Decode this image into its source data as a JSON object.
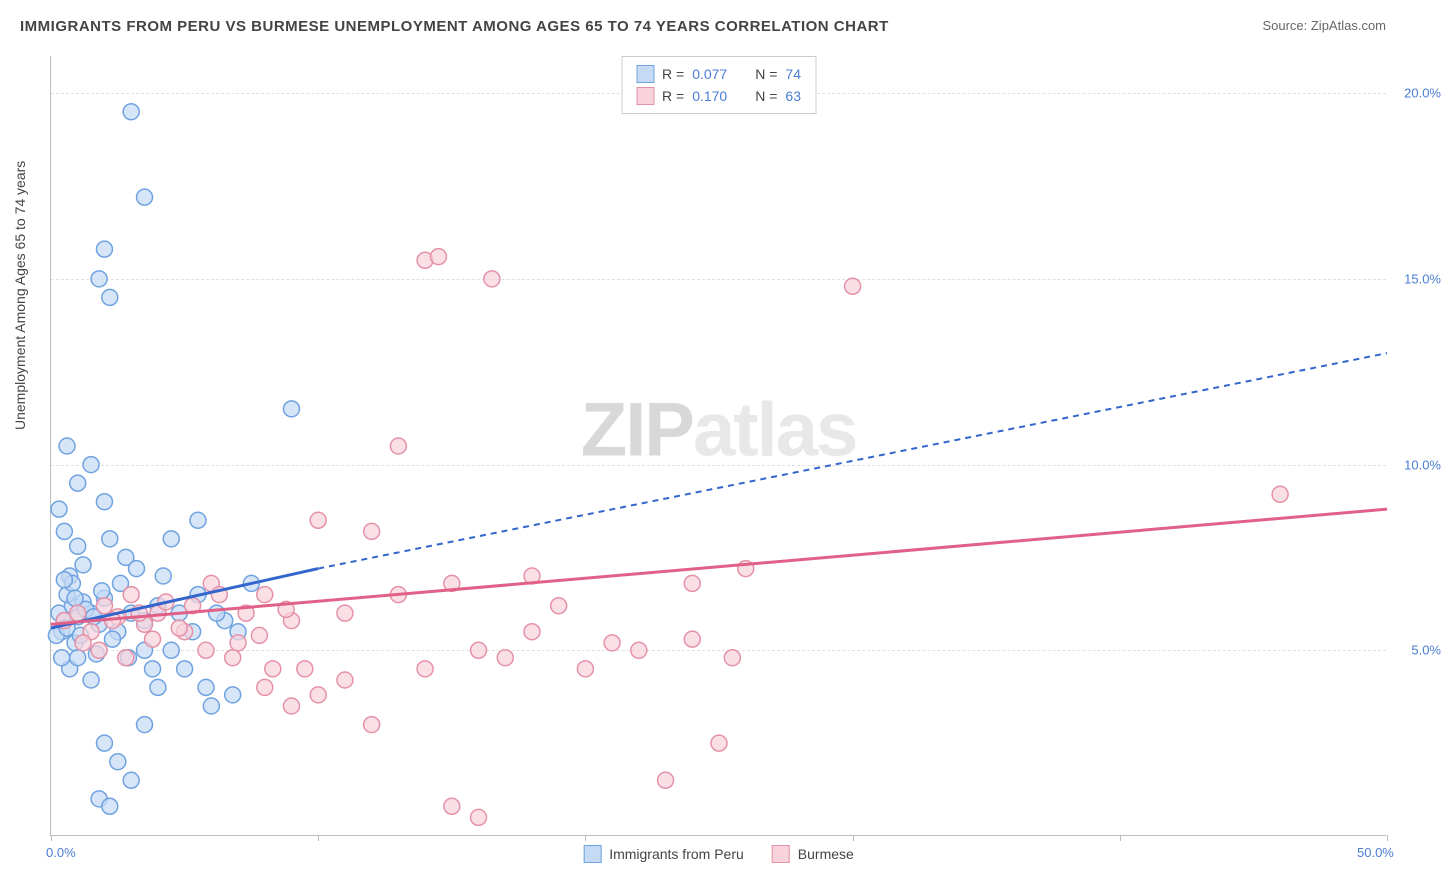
{
  "title": "IMMIGRANTS FROM PERU VS BURMESE UNEMPLOYMENT AMONG AGES 65 TO 74 YEARS CORRELATION CHART",
  "source": "Source: ZipAtlas.com",
  "y_axis_label": "Unemployment Among Ages 65 to 74 years",
  "watermark_zip": "ZIP",
  "watermark_atlas": "atlas",
  "chart": {
    "type": "scatter",
    "xlim": [
      0,
      50
    ],
    "ylim": [
      0,
      21
    ],
    "x_ticks": [
      0,
      10,
      20,
      30,
      40,
      50
    ],
    "x_tick_labels": [
      "0.0%",
      "",
      "",
      "",
      "",
      "50.0%"
    ],
    "y_ticks": [
      5,
      10,
      15,
      20
    ],
    "y_tick_labels": [
      "5.0%",
      "10.0%",
      "15.0%",
      "20.0%"
    ],
    "grid_color": "#e0e0e0",
    "background_color": "#ffffff",
    "series": [
      {
        "name": "Immigrants from Peru",
        "marker_color": "#c5daf5",
        "marker_border": "#6fa3e0",
        "line_color": "#3366cc",
        "r_value": "0.077",
        "n_value": "74",
        "trend": {
          "x1": 0,
          "y1": 5.6,
          "x2": 10,
          "y2": 7.2,
          "x2_dash": 50,
          "y2_dash": 13.0
        },
        "points": [
          [
            0.3,
            6.0
          ],
          [
            0.5,
            5.8
          ],
          [
            0.8,
            6.2
          ],
          [
            0.4,
            5.5
          ],
          [
            0.6,
            6.5
          ],
          [
            1.0,
            5.9
          ],
          [
            1.2,
            6.3
          ],
          [
            0.7,
            7.0
          ],
          [
            0.9,
            5.2
          ],
          [
            1.5,
            6.0
          ],
          [
            1.8,
            5.7
          ],
          [
            2.0,
            6.4
          ],
          [
            0.5,
            8.2
          ],
          [
            0.3,
            8.8
          ],
          [
            0.7,
            4.5
          ],
          [
            1.0,
            4.8
          ],
          [
            1.5,
            4.2
          ],
          [
            2.5,
            5.5
          ],
          [
            3.0,
            6.0
          ],
          [
            2.2,
            8.0
          ],
          [
            2.8,
            7.5
          ],
          [
            3.5,
            5.8
          ],
          [
            4.0,
            6.2
          ],
          [
            0.6,
            10.5
          ],
          [
            1.0,
            9.5
          ],
          [
            1.5,
            10.0
          ],
          [
            2.0,
            9.0
          ],
          [
            2.0,
            2.5
          ],
          [
            2.5,
            2.0
          ],
          [
            3.0,
            1.5
          ],
          [
            3.5,
            3.0
          ],
          [
            1.8,
            1.0
          ],
          [
            2.2,
            0.8
          ],
          [
            4.5,
            5.0
          ],
          [
            5.0,
            4.5
          ],
          [
            5.5,
            6.5
          ],
          [
            6.0,
            3.5
          ],
          [
            6.5,
            5.8
          ],
          [
            5.5,
            8.5
          ],
          [
            4.5,
            8.0
          ],
          [
            1.8,
            15.0
          ],
          [
            2.0,
            15.8
          ],
          [
            2.2,
            14.5
          ],
          [
            3.0,
            19.5
          ],
          [
            3.5,
            17.2
          ],
          [
            1.0,
            7.8
          ],
          [
            0.4,
            4.8
          ],
          [
            0.2,
            5.4
          ],
          [
            0.6,
            5.6
          ],
          [
            0.8,
            6.8
          ],
          [
            1.1,
            5.4
          ],
          [
            1.3,
            6.1
          ],
          [
            1.6,
            5.9
          ],
          [
            1.9,
            6.6
          ],
          [
            2.3,
            5.3
          ],
          [
            2.6,
            6.8
          ],
          [
            2.9,
            4.8
          ],
          [
            3.2,
            7.2
          ],
          [
            3.8,
            4.5
          ],
          [
            4.2,
            7.0
          ],
          [
            4.8,
            6.0
          ],
          [
            5.3,
            5.5
          ],
          [
            5.8,
            4.0
          ],
          [
            6.2,
            6.0
          ],
          [
            6.8,
            3.8
          ],
          [
            7.0,
            5.5
          ],
          [
            0.5,
            6.9
          ],
          [
            0.9,
            6.4
          ],
          [
            1.2,
            7.3
          ],
          [
            1.7,
            4.9
          ],
          [
            9.0,
            11.5
          ],
          [
            7.5,
            6.8
          ],
          [
            3.5,
            5.0
          ],
          [
            4.0,
            4.0
          ]
        ]
      },
      {
        "name": "Burmese",
        "marker_color": "#f8d3dc",
        "marker_border": "#e591a8",
        "line_color": "#e06088",
        "r_value": "0.170",
        "n_value": "63",
        "trend": {
          "x1": 0,
          "y1": 5.7,
          "x2": 50,
          "y2": 8.8
        },
        "points": [
          [
            0.5,
            5.8
          ],
          [
            1.0,
            6.0
          ],
          [
            1.5,
            5.5
          ],
          [
            2.0,
            6.2
          ],
          [
            2.5,
            5.9
          ],
          [
            3.0,
            6.5
          ],
          [
            3.5,
            5.7
          ],
          [
            4.0,
            6.0
          ],
          [
            5.0,
            5.5
          ],
          [
            6.0,
            6.8
          ],
          [
            7.0,
            5.2
          ],
          [
            8.0,
            6.5
          ],
          [
            9.0,
            5.8
          ],
          [
            10.0,
            8.5
          ],
          [
            11.0,
            6.0
          ],
          [
            12.0,
            8.2
          ],
          [
            13.0,
            6.5
          ],
          [
            14.0,
            4.5
          ],
          [
            15.0,
            6.8
          ],
          [
            16.0,
            5.0
          ],
          [
            17.0,
            4.8
          ],
          [
            18.0,
            5.5
          ],
          [
            9.0,
            3.5
          ],
          [
            10.0,
            3.8
          ],
          [
            11.0,
            4.2
          ],
          [
            12.0,
            3.0
          ],
          [
            15.0,
            0.8
          ],
          [
            16.0,
            0.5
          ],
          [
            23.0,
            1.5
          ],
          [
            25.0,
            2.5
          ],
          [
            22.0,
            5.0
          ],
          [
            20.0,
            4.5
          ],
          [
            21.0,
            5.2
          ],
          [
            19.0,
            6.2
          ],
          [
            18.0,
            7.0
          ],
          [
            24.0,
            6.8
          ],
          [
            26.0,
            7.2
          ],
          [
            13.0,
            10.5
          ],
          [
            14.0,
            15.5
          ],
          [
            14.5,
            15.6
          ],
          [
            16.5,
            15.0
          ],
          [
            30.0,
            14.8
          ],
          [
            46.0,
            9.2
          ],
          [
            8.0,
            4.0
          ],
          [
            9.5,
            4.5
          ],
          [
            1.2,
            5.2
          ],
          [
            1.8,
            5.0
          ],
          [
            2.3,
            5.8
          ],
          [
            2.8,
            4.8
          ],
          [
            3.3,
            6.0
          ],
          [
            3.8,
            5.3
          ],
          [
            4.3,
            6.3
          ],
          [
            4.8,
            5.6
          ],
          [
            5.3,
            6.2
          ],
          [
            5.8,
            5.0
          ],
          [
            6.3,
            6.5
          ],
          [
            6.8,
            4.8
          ],
          [
            7.3,
            6.0
          ],
          [
            7.8,
            5.4
          ],
          [
            8.3,
            4.5
          ],
          [
            8.8,
            6.1
          ],
          [
            25.5,
            4.8
          ],
          [
            24.0,
            5.3
          ]
        ]
      }
    ]
  },
  "legend_bottom": {
    "series1_label": "Immigrants from Peru",
    "series2_label": "Burmese"
  },
  "stats_labels": {
    "r": "R =",
    "n": "N ="
  }
}
